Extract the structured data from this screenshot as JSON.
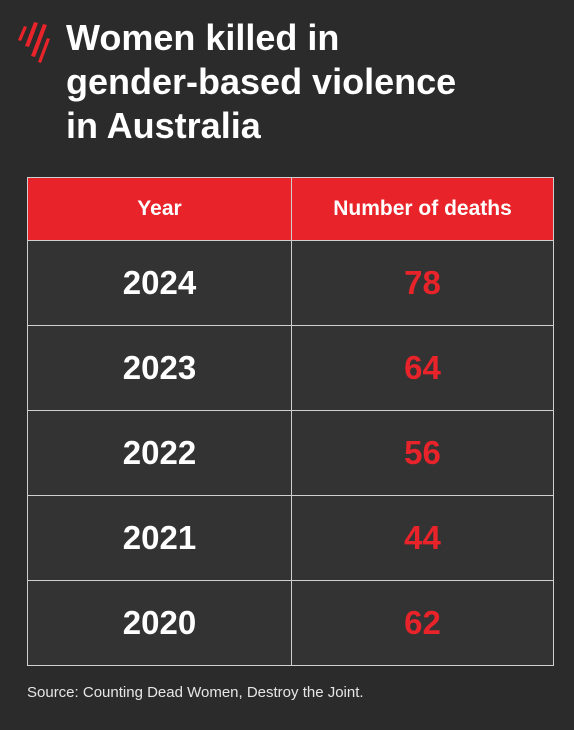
{
  "title_lines": [
    "Women killed in",
    "gender-based violence",
    "in Australia"
  ],
  "colors": {
    "background": "#2b2b2b",
    "accent": "#e8232a",
    "cell": "#333333",
    "text": "#ffffff"
  },
  "logo_icon": "red-slash-logo-icon",
  "chart_data": {
    "type": "table",
    "columns": [
      "Year",
      "Number of deaths"
    ],
    "rows": [
      {
        "year": "2024",
        "deaths": 78
      },
      {
        "year": "2023",
        "deaths": 64
      },
      {
        "year": "2022",
        "deaths": 56
      },
      {
        "year": "2021",
        "deaths": 44
      },
      {
        "year": "2020",
        "deaths": 62
      }
    ]
  },
  "source": "Source: Counting Dead Women, Destroy the Joint."
}
